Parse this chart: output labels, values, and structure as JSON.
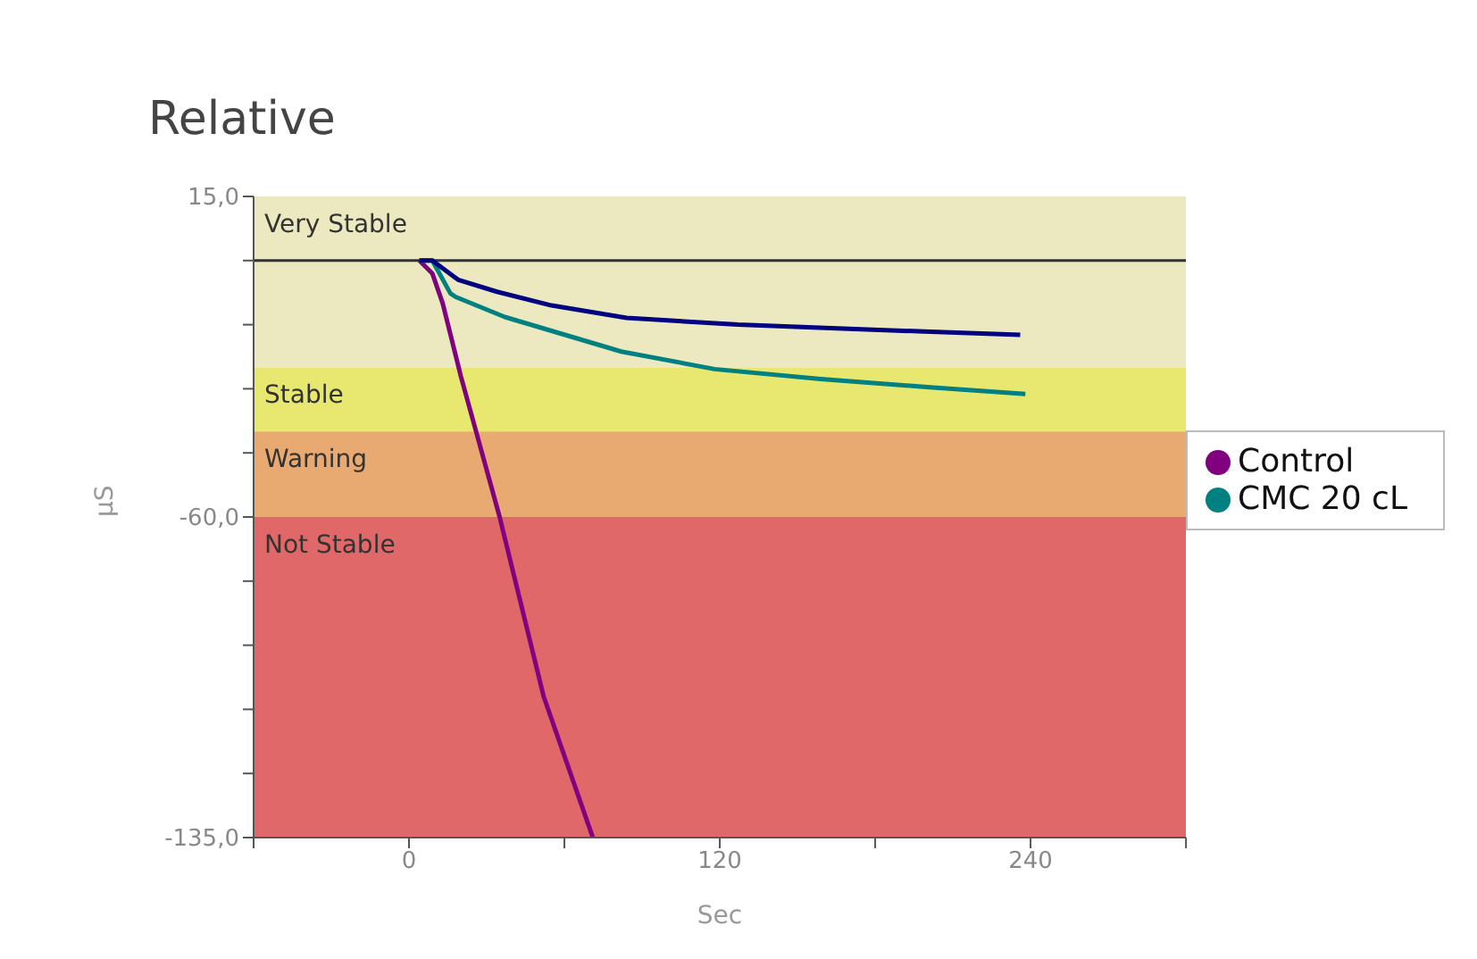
{
  "chart_data": {
    "type": "line",
    "title": "Relative",
    "xlabel": "Sec",
    "ylabel": "μS",
    "series": [
      {
        "name": "Control",
        "color": "#800080",
        "x": [
          4,
          9,
          13,
          20,
          35,
          52,
          71
        ],
        "values": [
          0,
          -3,
          -10,
          -27,
          -60,
          -102,
          -135
        ]
      },
      {
        "name": "CMC 20 cL",
        "color": "#008080",
        "x": [
          4,
          9,
          16,
          18,
          37,
          82,
          118,
          159,
          200,
          238
        ],
        "values": [
          0,
          0,
          -7.7,
          -8.5,
          -13.2,
          -21.3,
          -25.4,
          -27.7,
          -29.6,
          -31.2
        ]
      },
      {
        "color": "#000080",
        "x": [
          4,
          9,
          19,
          34,
          55,
          84,
          127,
          163,
          199,
          236
        ],
        "values": [
          0,
          0,
          -4.5,
          -7.3,
          -10.5,
          -13.4,
          -15,
          -15.8,
          -16.6,
          -17.4
        ]
      }
    ],
    "xlim": [
      -60,
      300
    ],
    "xticks": [
      {
        "value": -60,
        "label": null
      },
      0,
      {
        "value": 60,
        "label": null
      },
      120,
      {
        "value": 180,
        "label": null
      },
      240,
      {
        "value": 300,
        "label": null
      }
    ],
    "ylim": [
      -135,
      15
    ],
    "yticks": [
      {
        "value": -135,
        "label": "-135,0"
      },
      {
        "value": -120,
        "label": null
      },
      {
        "value": -105,
        "label": null
      },
      {
        "value": -90,
        "label": null
      },
      {
        "value": -75,
        "label": null
      },
      {
        "value": -60,
        "label": "-60,0"
      },
      {
        "value": -45,
        "label": null
      },
      {
        "value": -30,
        "label": null
      },
      {
        "value": -15,
        "label": null
      },
      {
        "value": 0,
        "label": null
      },
      {
        "value": 15,
        "label": "15,0"
      }
    ],
    "bands": [
      {
        "axis": "y",
        "from": -25,
        "to": 15,
        "label": "Very Stable",
        "color": "#ece8c0"
      },
      {
        "axis": "y",
        "from": -40,
        "to": -25,
        "label": "Stable",
        "color": "#e8e870"
      },
      {
        "axis": "y",
        "from": -60,
        "to": -40,
        "label": "Warning",
        "color": "#e8aa70"
      },
      {
        "axis": "y",
        "from": -135,
        "to": -60,
        "label": "Not Stable",
        "color": "#e06868"
      }
    ],
    "ref_lines": [
      {
        "axis": "y",
        "value": 0,
        "color": "#333333"
      }
    ],
    "legend": "right",
    "marker": "none",
    "line_style": "solid"
  }
}
